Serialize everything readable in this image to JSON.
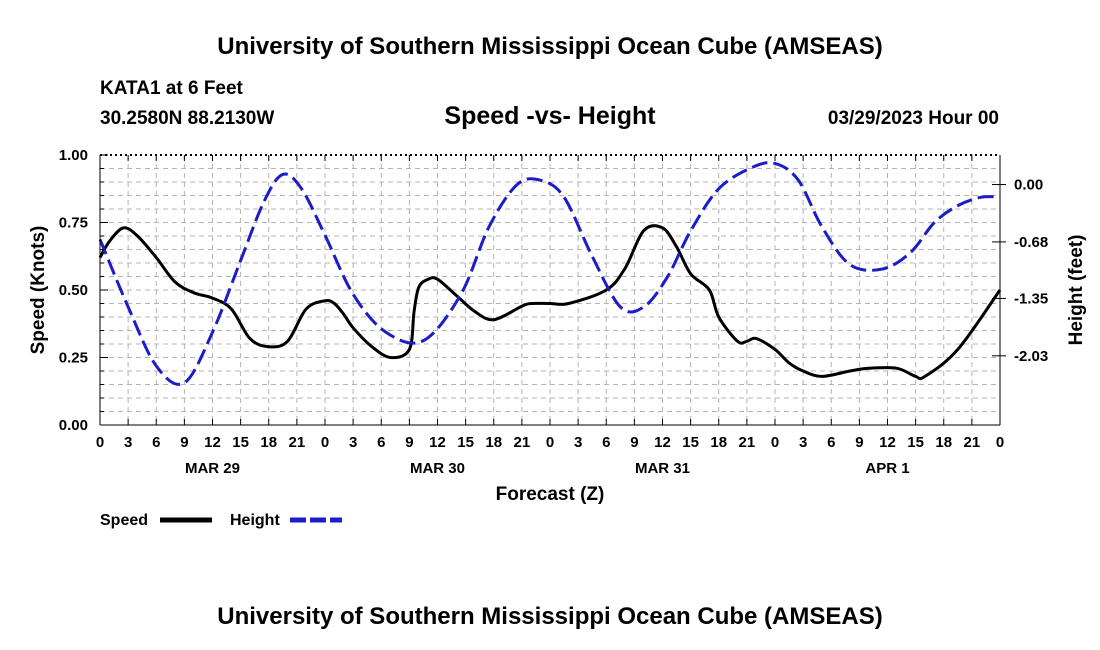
{
  "header": {
    "title": "University of Southern Mississippi Ocean Cube (AMSEAS)",
    "station": "KATA1 at 6 Feet",
    "coords": "30.2580N  88.2130W",
    "date": "03/29/2023 Hour 00",
    "footer_title": "University of Southern Mississippi Ocean Cube (AMSEAS)"
  },
  "chart_data": {
    "type": "line",
    "title": "Speed -vs- Height",
    "xlabel": "Forecast (Z)",
    "ylabel": "Speed (Knots)",
    "y2label": "Height (feet)",
    "xlim": [
      0,
      96
    ],
    "ylim": [
      0,
      1
    ],
    "y2lim": [
      -2.85,
      0.35
    ],
    "grid": true,
    "x_tick_labels": [
      "0",
      "3",
      "6",
      "9",
      "12",
      "15",
      "18",
      "21",
      "0",
      "3",
      "6",
      "9",
      "12",
      "15",
      "18",
      "21",
      "0",
      "3",
      "6",
      "9",
      "12",
      "15",
      "18",
      "21",
      "0",
      "3",
      "6",
      "9",
      "12",
      "15",
      "18",
      "21",
      "0"
    ],
    "day_labels": [
      {
        "x": 12,
        "label": "MAR 29"
      },
      {
        "x": 36,
        "label": "MAR 30"
      },
      {
        "x": 60,
        "label": "MAR 31"
      },
      {
        "x": 84,
        "label": "APR 1"
      }
    ],
    "y_ticks": [
      "0.00",
      "0.25",
      "0.50",
      "0.75",
      "1.00"
    ],
    "y2_ticks": [
      "-2.03",
      "-1.35",
      "-0.68",
      "0.00"
    ],
    "series": [
      {
        "name": "Speed",
        "axis": "left",
        "color": "#000000",
        "style": "solid",
        "x": [
          0,
          1,
          2.5,
          4,
          6,
          8,
          10,
          12,
          14,
          16,
          18,
          20,
          22,
          24,
          25,
          26,
          27,
          29,
          31,
          33,
          33.5,
          34,
          35,
          36,
          38,
          40,
          42,
          45,
          46,
          48,
          50,
          54,
          56,
          58,
          60,
          61.5,
          63,
          65,
          66,
          68,
          69,
          70,
          72,
          73.5,
          75,
          77,
          80,
          82,
          85,
          87,
          88,
          91.5,
          96
        ],
        "values": [
          0.62,
          0.68,
          0.73,
          0.7,
          0.62,
          0.53,
          0.49,
          0.47,
          0.43,
          0.32,
          0.29,
          0.31,
          0.43,
          0.46,
          0.45,
          0.41,
          0.36,
          0.29,
          0.25,
          0.28,
          0.42,
          0.51,
          0.54,
          0.54,
          0.48,
          0.42,
          0.39,
          0.44,
          0.45,
          0.45,
          0.45,
          0.5,
          0.58,
          0.72,
          0.73,
          0.66,
          0.56,
          0.5,
          0.4,
          0.31,
          0.31,
          0.32,
          0.28,
          0.23,
          0.2,
          0.18,
          0.2,
          0.21,
          0.21,
          0.18,
          0.18,
          0.28,
          0.5
        ]
      },
      {
        "name": "Height",
        "axis": "right",
        "color": "#1c1cc8",
        "style": "dashed",
        "x": [
          0,
          3,
          6,
          9,
          12,
          15,
          17.5,
          19.5,
          21.5,
          24,
          27,
          30.5,
          34.5,
          38.5,
          41.5,
          44.5,
          47,
          49.5,
          52.5,
          55.5,
          58,
          60.5,
          63,
          66,
          69.5,
          72,
          74.5,
          77,
          80,
          83.5,
          86.5,
          89,
          91.5,
          94,
          96
        ],
        "values": [
          -0.65,
          -1.45,
          -2.15,
          -2.35,
          -1.75,
          -0.9,
          -0.2,
          0.12,
          -0.05,
          -0.6,
          -1.3,
          -1.75,
          -1.85,
          -1.3,
          -0.5,
          0.0,
          0.05,
          -0.15,
          -0.85,
          -1.45,
          -1.45,
          -1.1,
          -0.55,
          -0.05,
          0.2,
          0.25,
          0.05,
          -0.5,
          -0.95,
          -1.0,
          -0.8,
          -0.45,
          -0.25,
          -0.15,
          -0.15
        ]
      }
    ]
  },
  "legend": {
    "speed_label": "Speed",
    "height_label": "Height"
  }
}
